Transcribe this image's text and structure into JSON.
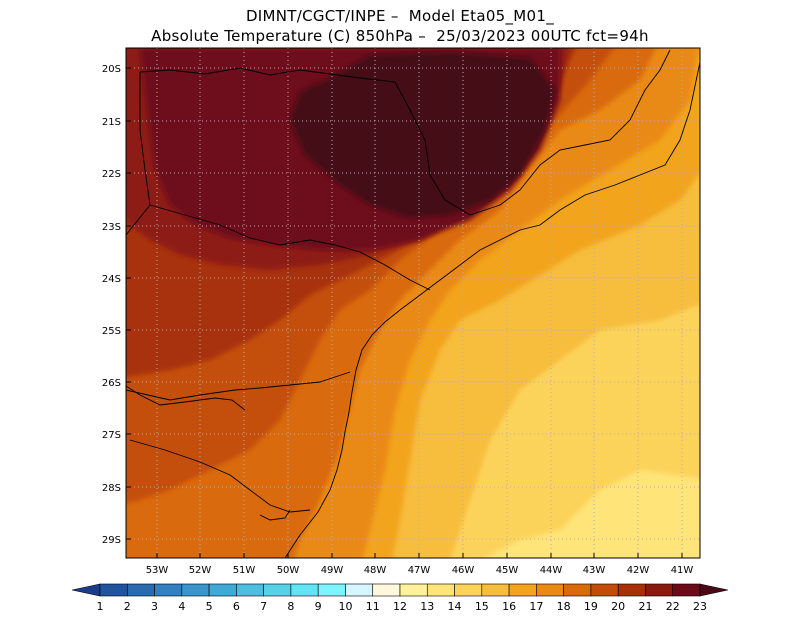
{
  "header": {
    "line1": "DIMNT/CGCT/INPE –  Model Eta05_M01_",
    "line2": "Absolute Temperature (C) 850hPa –  25/03/2023 00UTC fct=94h"
  },
  "map": {
    "lat_labels": [
      "20S",
      "21S",
      "22S",
      "23S",
      "24S",
      "25S",
      "26S",
      "27S",
      "28S",
      "29S"
    ],
    "lon_labels": [
      "53W",
      "52W",
      "51W",
      "50W",
      "49W",
      "48W",
      "47W",
      "46W",
      "45W",
      "44W",
      "43W",
      "42W",
      "41W"
    ],
    "lon_range": [
      -53.6,
      -40.5
    ],
    "lat_range": [
      -29.4,
      -19.8
    ],
    "grid": "dotted"
  },
  "colorbar": {
    "labels": [
      "1",
      "2",
      "3",
      "4",
      "5",
      "6",
      "7",
      "8",
      "9",
      "10",
      "11",
      "12",
      "13",
      "14",
      "15",
      "16",
      "17",
      "18",
      "19",
      "20",
      "21",
      "22",
      "23"
    ],
    "colors": [
      "#1a3c8c",
      "#1f55a0",
      "#2a6bb0",
      "#3380c0",
      "#3a95cc",
      "#40aad6",
      "#4cbee0",
      "#55d2ea",
      "#62e4f4",
      "#7cf4fb",
      "#d6f6ff",
      "#fff8dc",
      "#fff29a",
      "#ffe47a",
      "#fcd35a",
      "#f7bd3c",
      "#f2a41c",
      "#ea8a12",
      "#d96a0c",
      "#c24c08",
      "#a83006",
      "#8a1a10",
      "#6c0a1a",
      "#4a0a14"
    ]
  },
  "regions": [
    {
      "name": "extreme-core-region",
      "color": "#451016",
      "level": ">23"
    },
    {
      "name": "very-hot-region",
      "color": "#6e0a1b",
      "level": "22-23"
    },
    {
      "name": "hot-region",
      "color": "#8e1c12",
      "level": "21-22"
    },
    {
      "name": "warm-interior-region",
      "color": "#a83209",
      "level": "20-21"
    },
    {
      "name": "orange-region",
      "color": "#c44f07",
      "level": "19-20"
    },
    {
      "name": "orange-light-region",
      "color": "#d96a0c",
      "level": "18-19"
    },
    {
      "name": "amber-region",
      "color": "#ea8a12",
      "level": "17-18"
    },
    {
      "name": "gold-region",
      "color": "#f2a41c",
      "level": "16-17"
    },
    {
      "name": "yellow-region",
      "color": "#f7bd3c",
      "level": "15-16"
    },
    {
      "name": "pale-yellow-region",
      "color": "#fcd35a",
      "level": "14-15"
    },
    {
      "name": "light-yellow-region",
      "color": "#ffe47a",
      "level": "13-14"
    }
  ]
}
